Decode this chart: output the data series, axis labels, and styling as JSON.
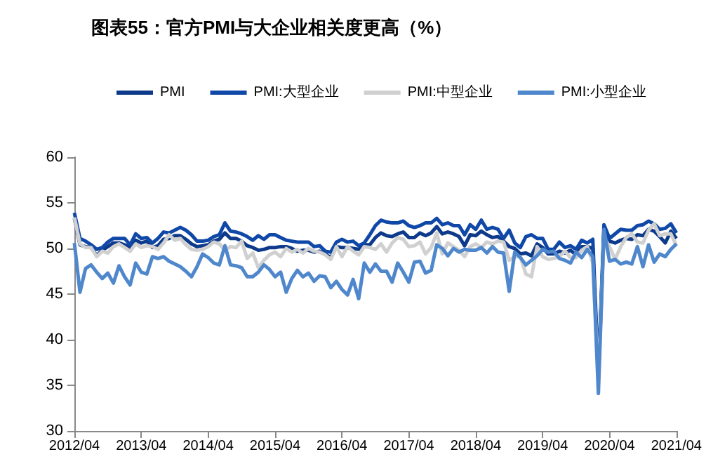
{
  "chart_data": {
    "type": "line",
    "title": "图表55：官方PMI与大企业相关度更高（%）",
    "categories": [
      "2012/04",
      null,
      null,
      null,
      null,
      null,
      null,
      null,
      null,
      null,
      null,
      null,
      "2013/04",
      null,
      null,
      null,
      null,
      null,
      null,
      null,
      null,
      null,
      null,
      null,
      "2014/04",
      null,
      null,
      null,
      null,
      null,
      null,
      null,
      null,
      null,
      null,
      null,
      "2015/04",
      null,
      null,
      null,
      null,
      null,
      null,
      null,
      null,
      null,
      null,
      null,
      "2016/04",
      null,
      null,
      null,
      null,
      null,
      null,
      null,
      null,
      null,
      null,
      null,
      "2017/04",
      null,
      null,
      null,
      null,
      null,
      null,
      null,
      null,
      null,
      null,
      null,
      "2018/04",
      null,
      null,
      null,
      null,
      null,
      null,
      null,
      null,
      null,
      null,
      null,
      "2019/04",
      null,
      null,
      null,
      null,
      null,
      null,
      null,
      null,
      null,
      null,
      null,
      "2020/04",
      null,
      null,
      null,
      null,
      null,
      null,
      null,
      null,
      null,
      null,
      null,
      "2021/04"
    ],
    "series": [
      {
        "name": "PMI",
        "color": "#0d3a8a",
        "values": [
          53.3,
          50.4,
          50.2,
          50.1,
          49.2,
          49.8,
          50.2,
          50.6,
          50.6,
          50.4,
          50.1,
          50.9,
          50.6,
          50.8,
          50.1,
          50.3,
          51.0,
          51.1,
          51.4,
          51.4,
          51.0,
          50.5,
          50.2,
          50.3,
          50.4,
          50.8,
          51.0,
          51.7,
          51.1,
          51.1,
          50.8,
          50.3,
          50.1,
          49.8,
          49.9,
          50.1,
          50.1,
          50.2,
          50.2,
          50.0,
          49.7,
          49.8,
          49.8,
          49.6,
          49.7,
          49.4,
          49.0,
          50.2,
          50.1,
          50.1,
          50.0,
          49.9,
          50.4,
          50.4,
          51.2,
          51.7,
          51.4,
          51.3,
          51.6,
          51.8,
          51.2,
          51.2,
          51.7,
          51.4,
          51.7,
          52.4,
          51.6,
          51.8,
          51.6,
          51.3,
          50.3,
          51.5,
          51.4,
          51.9,
          51.5,
          51.2,
          51.3,
          50.8,
          50.2,
          50.0,
          49.4,
          49.5,
          49.2,
          50.5,
          50.1,
          49.4,
          49.4,
          49.7,
          49.5,
          49.8,
          49.3,
          50.2,
          50.2,
          50.0,
          35.7,
          52.0,
          50.8,
          50.6,
          50.9,
          51.1,
          51.0,
          51.5,
          51.4,
          52.1,
          51.9,
          51.3,
          50.6,
          51.9,
          51.1
        ]
      },
      {
        "name": "PMI:大型企业",
        "color": "#1048a8",
        "values": [
          53.9,
          51.1,
          50.8,
          50.4,
          49.9,
          50.1,
          50.7,
          51.1,
          51.1,
          51.1,
          50.4,
          51.6,
          51.1,
          51.2,
          50.6,
          51.1,
          51.8,
          51.7,
          52.0,
          52.3,
          52.0,
          51.5,
          50.8,
          50.8,
          50.9,
          51.3,
          51.5,
          52.8,
          51.9,
          51.8,
          51.6,
          51.3,
          50.9,
          51.4,
          51.0,
          51.5,
          51.5,
          51.2,
          50.9,
          50.8,
          50.7,
          50.7,
          50.7,
          50.2,
          50.3,
          49.7,
          49.6,
          50.7,
          51.0,
          50.7,
          50.8,
          50.3,
          50.6,
          51.5,
          52.5,
          53.1,
          52.9,
          52.8,
          52.8,
          53.0,
          52.5,
          52.3,
          52.5,
          52.8,
          52.8,
          53.3,
          52.6,
          52.8,
          52.5,
          52.5,
          51.5,
          52.6,
          52.1,
          53.1,
          52.1,
          52.3,
          52.1,
          51.1,
          52.0,
          50.6,
          50.1,
          51.3,
          51.5,
          51.1,
          51.1,
          49.9,
          49.9,
          50.7,
          50.1,
          50.3,
          49.9,
          50.9,
          50.6,
          51.0,
          36.3,
          52.6,
          51.1,
          51.6,
          52.1,
          52.0,
          52.0,
          52.5,
          52.6,
          53.0,
          52.7,
          52.1,
          52.2,
          52.7,
          51.7
        ]
      },
      {
        "name": "PMI:中型企业",
        "color": "#d0d0d0",
        "values": [
          53.4,
          50.5,
          50.1,
          50.1,
          49.1,
          49.7,
          49.5,
          50.2,
          50.5,
          50.1,
          49.7,
          50.5,
          50.1,
          50.3,
          50.2,
          49.9,
          50.6,
          51.5,
          50.9,
          51.1,
          50.4,
          49.9,
          49.8,
          49.9,
          50.2,
          50.7,
          50.5,
          49.8,
          50.2,
          50.1,
          50.8,
          48.9,
          49.5,
          47.9,
          48.7,
          49.3,
          49.6,
          49.1,
          50.0,
          49.6,
          49.9,
          49.5,
          50.0,
          49.7,
          49.6,
          49.3,
          48.8,
          50.2,
          49.1,
          50.2,
          49.7,
          49.3,
          50.2,
          50.1,
          49.9,
          50.5,
          49.6,
          50.6,
          51.2,
          51.0,
          50.2,
          50.3,
          50.7,
          49.4,
          50.1,
          51.7,
          49.4,
          50.6,
          50.2,
          49.8,
          49.1,
          50.2,
          50.5,
          50.1,
          50.7,
          50.5,
          50.8,
          50.7,
          48.7,
          49.1,
          49.1,
          47.2,
          46.9,
          50.2,
          49.1,
          48.8,
          48.9,
          49.1,
          49.7,
          49.0,
          49.0,
          49.8,
          50.2,
          48.4,
          35.5,
          51.2,
          50.2,
          48.8,
          50.2,
          51.2,
          51.6,
          50.7,
          50.6,
          52.0,
          52.7,
          51.4,
          51.6,
          51.6,
          50.3
        ]
      },
      {
        "name": "PMI:小型企业",
        "color": "#4f87cc",
        "values": [
          50.6,
          45.2,
          47.8,
          48.2,
          47.4,
          46.7,
          47.3,
          46.2,
          48.1,
          46.9,
          46.0,
          48.4,
          47.4,
          47.2,
          49.1,
          48.9,
          49.1,
          48.6,
          48.3,
          48.0,
          47.5,
          46.9,
          48.0,
          49.4,
          49.0,
          48.4,
          48.2,
          50.3,
          48.2,
          48.1,
          47.9,
          46.9,
          46.9,
          47.4,
          48.2,
          47.7,
          46.9,
          47.4,
          45.2,
          46.7,
          47.6,
          46.9,
          47.3,
          46.4,
          47.0,
          46.9,
          45.7,
          46.4,
          45.5,
          44.9,
          46.6,
          44.5,
          48.4,
          47.4,
          48.3,
          47.5,
          47.5,
          46.3,
          48.4,
          47.4,
          46.3,
          48.5,
          48.6,
          47.3,
          47.6,
          50.4,
          50.0,
          49.2,
          50.0,
          49.6,
          49.9,
          49.8,
          49.8,
          50.1,
          49.5,
          50.2,
          49.6,
          49.5,
          45.3,
          49.6,
          49.0,
          48.2,
          48.7,
          49.2,
          49.9,
          49.6,
          49.7,
          48.9,
          48.7,
          48.4,
          49.6,
          49.0,
          49.9,
          49.1,
          34.1,
          52.1,
          48.6,
          48.8,
          48.3,
          48.5,
          48.3,
          50.2,
          48.0,
          50.4,
          48.5,
          49.4,
          49.1,
          49.9,
          50.5
        ]
      }
    ],
    "ylim": [
      30,
      60
    ],
    "yticks": [
      30,
      35,
      40,
      45,
      50,
      55,
      60
    ],
    "grid": false,
    "legend": "top",
    "marker": "none",
    "line_style": "solid"
  }
}
